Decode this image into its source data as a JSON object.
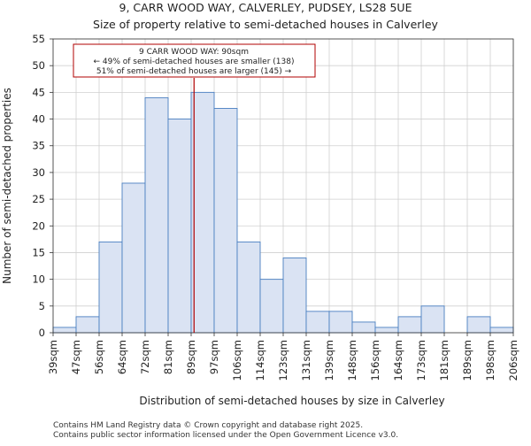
{
  "chart_data": {
    "type": "bar",
    "title": "9, CARR WOOD WAY, CALVERLEY, PUDSEY, LS28 5UE",
    "subtitle": "Size of property relative to semi-detached houses in Calverley",
    "xlabel": "Distribution of semi-detached houses by size in Calverley",
    "ylabel": "Number of semi-detached properties",
    "ylim": [
      0,
      55
    ],
    "yticks": [
      0,
      5,
      10,
      15,
      20,
      25,
      30,
      35,
      40,
      45,
      50,
      55
    ],
    "bin_edges": [
      "39sqm",
      "47sqm",
      "56sqm",
      "64sqm",
      "72sqm",
      "81sqm",
      "89sqm",
      "97sqm",
      "106sqm",
      "114sqm",
      "123sqm",
      "131sqm",
      "139sqm",
      "148sqm",
      "156sqm",
      "164sqm",
      "173sqm",
      "181sqm",
      "189sqm",
      "198sqm",
      "206sqm"
    ],
    "values": [
      1,
      3,
      17,
      28,
      44,
      40,
      45,
      42,
      17,
      10,
      14,
      4,
      4,
      2,
      1,
      3,
      5,
      0,
      3,
      1
    ],
    "bar_color": "#dae3f3",
    "bar_edge_color": "#4a7fc1",
    "marker": {
      "value": 90,
      "label": "9 CARR WOOD WAY: 90sqm",
      "color": "#b00000"
    },
    "annotation": {
      "line1": "9 CARR WOOD WAY: 90sqm",
      "line2": "← 49% of semi-detached houses are smaller (138)",
      "line3": "51% of semi-detached houses are larger (145) →"
    }
  },
  "footer": {
    "line1": "Contains HM Land Registry data © Crown copyright and database right 2025.",
    "line2": "Contains public sector information licensed under the Open Government Licence v3.0."
  }
}
